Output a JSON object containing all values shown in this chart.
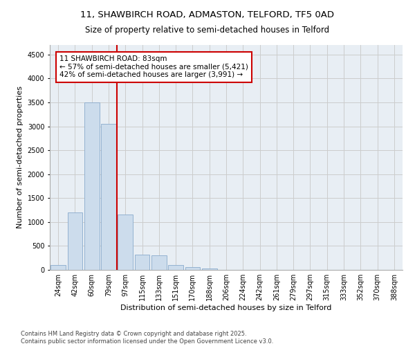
{
  "title_line1": "11, SHAWBIRCH ROAD, ADMASTON, TELFORD, TF5 0AD",
  "title_line2": "Size of property relative to semi-detached houses in Telford",
  "xlabel": "Distribution of semi-detached houses by size in Telford",
  "ylabel": "Number of semi-detached properties",
  "categories": [
    "24sqm",
    "42sqm",
    "60sqm",
    "79sqm",
    "97sqm",
    "115sqm",
    "133sqm",
    "151sqm",
    "170sqm",
    "188sqm",
    "206sqm",
    "224sqm",
    "242sqm",
    "261sqm",
    "279sqm",
    "297sqm",
    "315sqm",
    "333sqm",
    "352sqm",
    "370sqm",
    "388sqm"
  ],
  "values": [
    100,
    1200,
    3500,
    3050,
    1150,
    320,
    300,
    100,
    55,
    25,
    5,
    2,
    0,
    0,
    0,
    0,
    0,
    0,
    0,
    0,
    0
  ],
  "bar_color": "#ccdcec",
  "bar_edge_color": "#88aacc",
  "vline_color": "#cc0000",
  "annotation_text": "11 SHAWBIRCH ROAD: 83sqm\n← 57% of semi-detached houses are smaller (5,421)\n42% of semi-detached houses are larger (3,991) →",
  "annotation_box_color": "#cc0000",
  "ylim": [
    0,
    4700
  ],
  "yticks": [
    0,
    500,
    1000,
    1500,
    2000,
    2500,
    3000,
    3500,
    4000,
    4500
  ],
  "grid_color": "#cccccc",
  "bg_color": "#e8eef4",
  "footer_text": "Contains HM Land Registry data © Crown copyright and database right 2025.\nContains public sector information licensed under the Open Government Licence v3.0.",
  "title_fontsize": 9.5,
  "subtitle_fontsize": 8.5,
  "axis_label_fontsize": 8,
  "tick_fontsize": 7,
  "annotation_fontsize": 7.5,
  "ylabel_fontsize": 8
}
